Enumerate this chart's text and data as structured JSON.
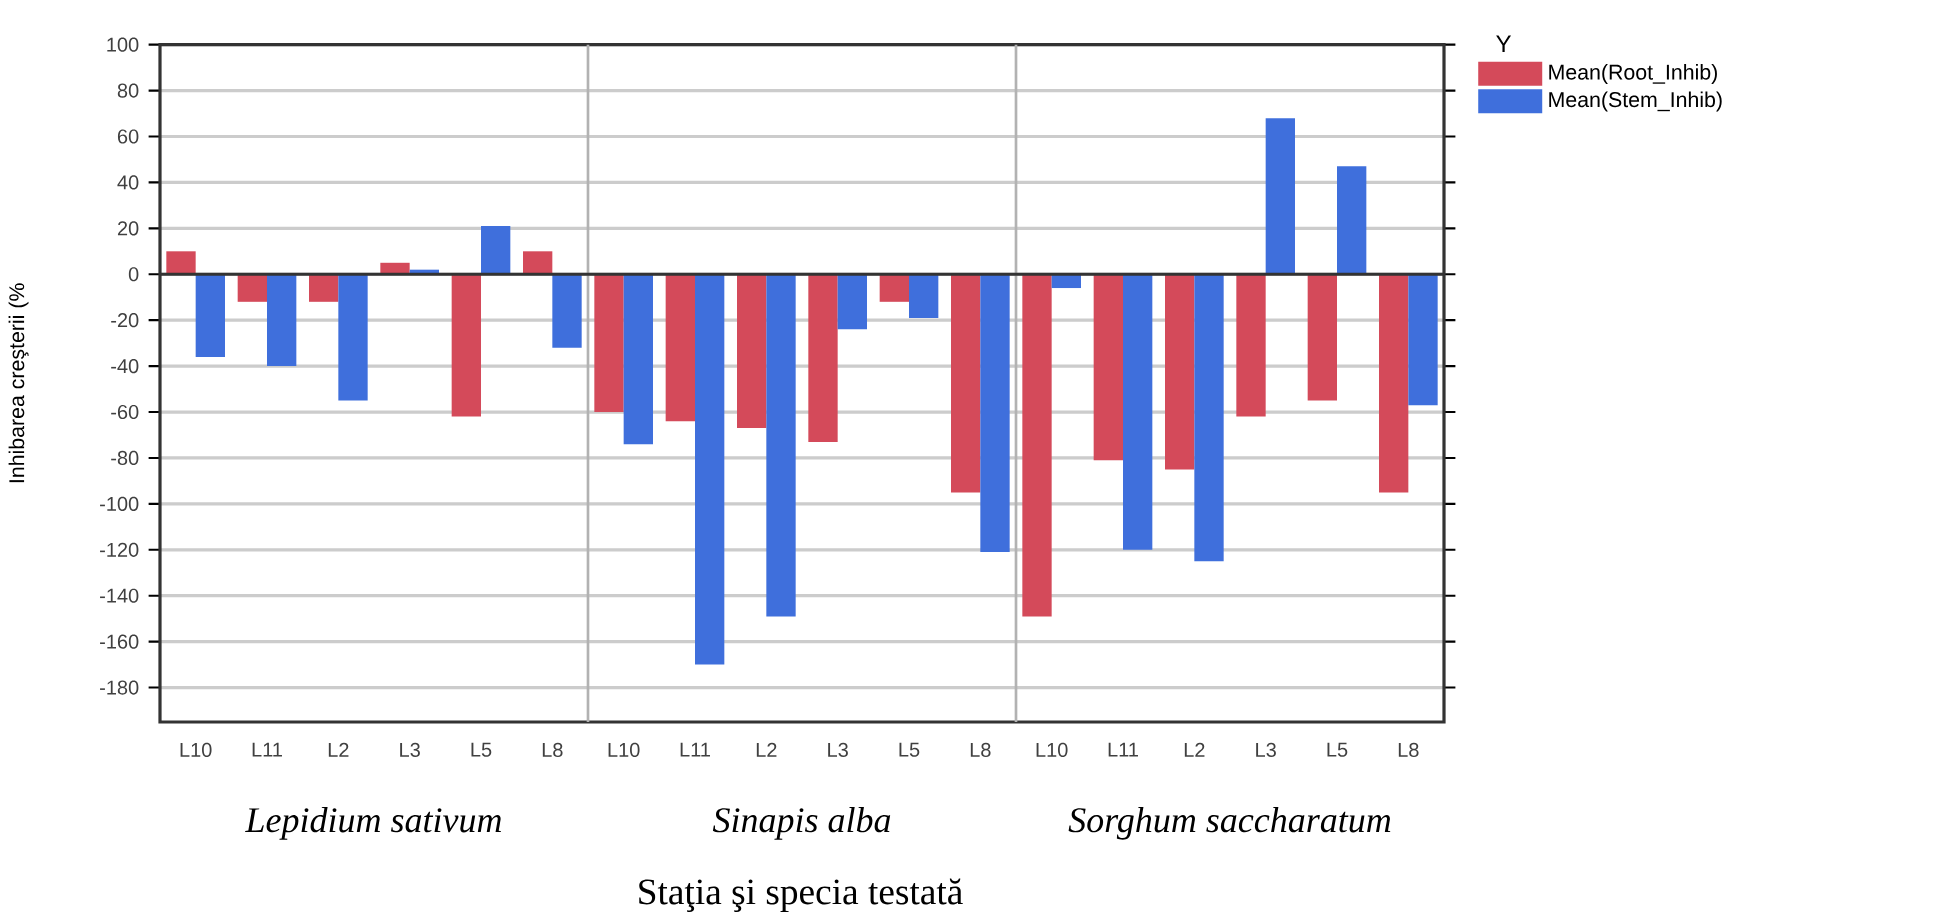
{
  "chart_data": {
    "type": "bar",
    "xlabel": "Staţia şi specia testată",
    "ylabel": "Inhibarea creşterii (%",
    "legend_title": "Y",
    "categories": [
      "L10",
      "L11",
      "L2",
      "L3",
      "L5",
      "L8",
      "L10",
      "L11",
      "L2",
      "L3",
      "L5",
      "L8",
      "L10",
      "L11",
      "L2",
      "L3",
      "L5",
      "L8"
    ],
    "series": [
      {
        "name": "Mean(Root_Inhib)",
        "color": "#d44a5a",
        "values": [
          10,
          -12,
          -12,
          5,
          -62,
          10,
          -60,
          -64,
          -67,
          -73,
          -12,
          -95,
          -149,
          -81,
          -85,
          -62,
          -55,
          -95
        ]
      },
      {
        "name": "Mean(Stem_Inhib)",
        "color": "#3f6fdc",
        "values": [
          -36,
          -40,
          -55,
          2,
          21,
          -32,
          -74,
          -170,
          -149,
          -24,
          -19,
          -121,
          -6,
          -120,
          -125,
          68,
          47,
          -57
        ]
      }
    ],
    "annotations": [
      "Lepidium sativum",
      "Sinapis alba",
      "Sorghum saccharatum"
    ],
    "ref_lines": [
      {
        "axis": "y",
        "value": 0,
        "color": "#333333"
      }
    ],
    "ylim": [
      -195,
      100
    ],
    "yticks": [
      -180,
      -160,
      -140,
      -120,
      -100,
      -80,
      -60,
      -40,
      -20,
      0,
      20,
      40,
      60,
      80,
      100
    ],
    "grid": "y",
    "legend": "top right"
  }
}
